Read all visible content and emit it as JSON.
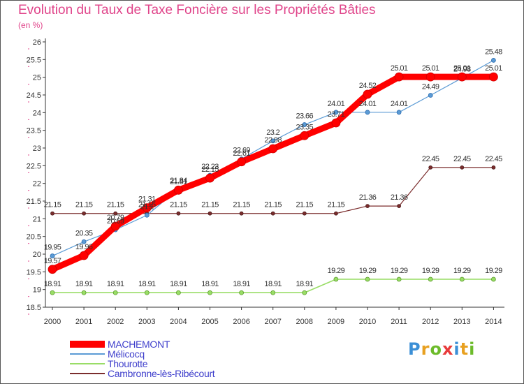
{
  "chart_data": {
    "type": "line",
    "title": "Evolution du Taux de Taxe Foncière sur les Propriétés Bâties",
    "subtitle": "(en %)",
    "xlabel": "",
    "ylabel": "(en %)",
    "x": [
      "2000",
      "2001",
      "2002",
      "2003",
      "2004",
      "2005",
      "2006",
      "2007",
      "2008",
      "2009",
      "2010",
      "2011",
      "2012",
      "2013",
      "2014"
    ],
    "ylim": [
      18.5,
      26
    ],
    "yticks": [
      "18.5",
      "19",
      "19.5",
      "20",
      "20.5",
      "21",
      "21.5",
      "22",
      "22.5",
      "23",
      "23.5",
      "24",
      "24.5",
      "25",
      "25.5",
      "26"
    ],
    "grid": false,
    "legend_position": "bottom-left",
    "series": [
      {
        "name": "MACHEMONT",
        "color": "#ff0000",
        "values": [
          19.57,
          19.96,
          20.79,
          21.31,
          21.81,
          22.15,
          22.61,
          22.98,
          23.35,
          23.71,
          24.52,
          25.01,
          25.01,
          25.01,
          25.01
        ],
        "labels": [
          "19.57",
          "19.96",
          "20.79",
          "21.31",
          "21.81",
          "22.15",
          "22.61",
          "22.98",
          "23.35",
          "23.71",
          "24.52",
          "25.01",
          "25.01",
          "25.01",
          "25.01"
        ]
      },
      {
        "name": "Mélicocq",
        "color": "#5b9bd5",
        "values": [
          19.95,
          20.35,
          20.69,
          21.1,
          21.84,
          22.23,
          22.69,
          23.2,
          23.66,
          24.01,
          24.01,
          24.01,
          24.49,
          24.98,
          25.48
        ],
        "labels": [
          "19.95",
          "20.35",
          "20.69",
          "21.1",
          "21.84",
          "22.23",
          "22.69",
          "23.2",
          "23.66",
          "24.01",
          "24.01",
          "24.01",
          "24.49",
          "24.98",
          "25.48"
        ]
      },
      {
        "name": "Thourotte",
        "color": "#99dd66",
        "values": [
          18.91,
          18.91,
          18.91,
          18.91,
          18.91,
          18.91,
          18.91,
          18.91,
          18.91,
          19.29,
          19.29,
          19.29,
          19.29,
          19.29,
          19.29
        ],
        "labels": [
          "18.91",
          "18.91",
          "18.91",
          "18.91",
          "18.91",
          "18.91",
          "18.91",
          "18.91",
          "18.91",
          "19.29",
          "19.29",
          "19.29",
          "19.29",
          "19.29",
          "19.29"
        ]
      },
      {
        "name": "Cambronne-lès-Ribécourt",
        "color": "#7b2d2d",
        "values": [
          21.15,
          21.15,
          21.15,
          21.15,
          21.15,
          21.15,
          21.15,
          21.15,
          21.15,
          21.15,
          21.36,
          21.36,
          22.45,
          22.45,
          22.45
        ],
        "labels": [
          "21.15",
          "21.15",
          "21.15",
          "21.15",
          "21.15",
          "21.15",
          "21.15",
          "21.15",
          "21.15",
          "21.15",
          "21.36",
          "21.36",
          "22.45",
          "22.45",
          "22.45"
        ]
      }
    ]
  },
  "legend": {
    "items": [
      {
        "label": "MACHEMONT",
        "color": "#ff0000"
      },
      {
        "label": "Mélicocq",
        "color": "#5b9bd5"
      },
      {
        "label": "Thourotte",
        "color": "#99dd66"
      },
      {
        "label": "Cambronne-lès-Ribécourt",
        "color": "#7b2d2d"
      }
    ]
  },
  "logo": {
    "letters": [
      "P",
      "r",
      "o",
      "x",
      "i",
      "t",
      "i"
    ],
    "colors": [
      "#3b8fd6",
      "#e8a020",
      "#6cbb2a",
      "#e83a3a",
      "#3b8fd6",
      "#e8a020",
      "#6cbb2a"
    ]
  }
}
